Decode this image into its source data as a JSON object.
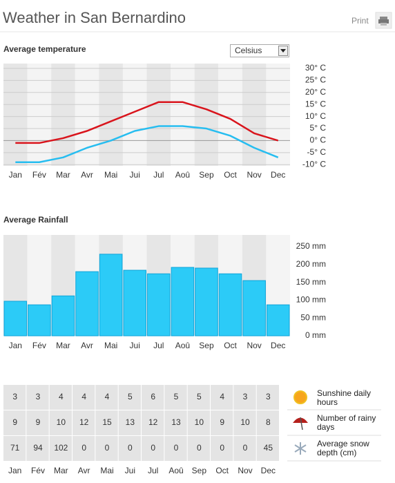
{
  "header": {
    "title": "Weather in San Bernardino",
    "print": "Print"
  },
  "chart_data": [
    {
      "type": "line",
      "title": "Average temperature",
      "dropdown": "Celsius",
      "categories": [
        "Jan",
        "Fév",
        "Mar",
        "Avr",
        "Mai",
        "Jui",
        "Jul",
        "Aoû",
        "Sep",
        "Oct",
        "Nov",
        "Dec"
      ],
      "series": [
        {
          "color": "#d9141c",
          "values": [
            -1,
            -1,
            1,
            4,
            8,
            12,
            16,
            16,
            13,
            9,
            3,
            0
          ]
        },
        {
          "color": "#26bdf0",
          "values": [
            -9,
            -9,
            -7,
            -3,
            0,
            4,
            6,
            6,
            5,
            2,
            -3,
            -7
          ]
        }
      ],
      "ylim": [
        -10.5,
        32
      ],
      "yticks": [
        {
          "value": -10,
          "label": "-10° C"
        },
        {
          "value": -5,
          "label": "-5° C"
        },
        {
          "value": 0,
          "label": "0° C"
        },
        {
          "value": 5,
          "label": "5° C"
        },
        {
          "value": 10,
          "label": "10° C"
        },
        {
          "value": 15,
          "label": "15° C"
        },
        {
          "value": 20,
          "label": "20° C"
        },
        {
          "value": 25,
          "label": "25° C"
        },
        {
          "value": 30,
          "label": "30° C"
        }
      ],
      "grid": true
    },
    {
      "type": "bar",
      "title": "Average Rainfall",
      "categories": [
        "Jan",
        "Fév",
        "Mar",
        "Avr",
        "Mai",
        "Jui",
        "Jul",
        "Aoû",
        "Sep",
        "Oct",
        "Nov",
        "Dec"
      ],
      "values": [
        97,
        87,
        112,
        180,
        229,
        184,
        174,
        192,
        190,
        174,
        155,
        87
      ],
      "color": "#2ccbf7",
      "ylim": [
        0,
        283
      ],
      "yticks": [
        {
          "value": 0,
          "label": "0 mm"
        },
        {
          "value": 50,
          "label": "50 mm"
        },
        {
          "value": 100,
          "label": "100 mm"
        },
        {
          "value": 150,
          "label": "150 mm"
        },
        {
          "value": 200,
          "label": "200 mm"
        },
        {
          "value": 250,
          "label": "250 mm"
        }
      ],
      "grid": false
    }
  ],
  "table": {
    "months": [
      "Jan",
      "Fév",
      "Mar",
      "Avr",
      "Mai",
      "Jui",
      "Jul",
      "Aoû",
      "Sep",
      "Oct",
      "Nov",
      "Dec"
    ],
    "rows": [
      [
        3,
        3,
        4,
        4,
        4,
        5,
        6,
        5,
        5,
        4,
        3,
        3
      ],
      [
        9,
        9,
        10,
        12,
        15,
        13,
        12,
        13,
        10,
        9,
        10,
        8
      ],
      [
        71,
        94,
        102,
        0,
        0,
        0,
        0,
        0,
        0,
        0,
        0,
        45
      ]
    ],
    "labels": [
      "Sunshine daily hours",
      "Number of rainy days",
      "Average snow depth (cm)"
    ]
  }
}
